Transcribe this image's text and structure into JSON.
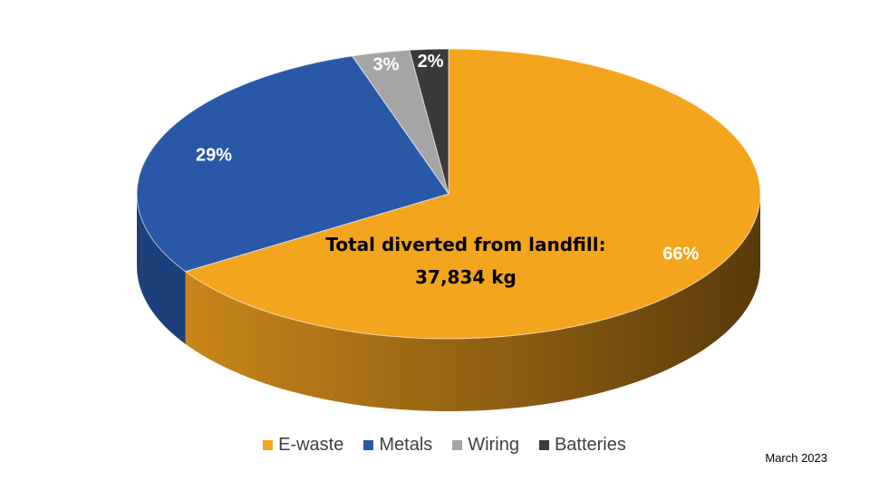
{
  "chart_data": {
    "type": "pie",
    "style": "3d",
    "categories": [
      "E-waste",
      "Metals",
      "Wiring",
      "Batteries"
    ],
    "values": [
      66,
      29,
      3,
      2
    ],
    "value_labels": [
      "66%",
      "29%",
      "3%",
      "2%"
    ],
    "colors": [
      "#F4A51E",
      "#2958A8",
      "#A5A5A5",
      "#3A3A3A"
    ],
    "side_colors": [
      "#C9861A",
      "#1D3F7A",
      "#7A7A7A",
      "#262626"
    ],
    "title": "",
    "center_text_line1": "Total diverted from landfill:",
    "center_text_line2": "37,834 kg",
    "legend_position": "bottom"
  },
  "footer": {
    "date": "March 2023"
  }
}
